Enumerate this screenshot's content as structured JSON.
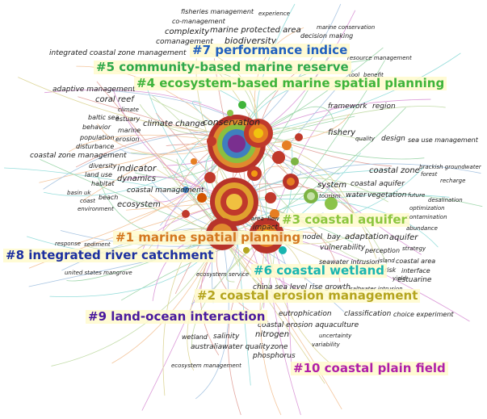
{
  "clusters": [
    {
      "id": "c7",
      "label": "#7 performance indice",
      "color": "#1f5fbf"
    },
    {
      "id": "c5",
      "label": "#5 community-based marine reserve",
      "color": "#2ea84a"
    },
    {
      "id": "c4",
      "label": "#4 ecosystem-based marine spatial planning",
      "color": "#3fb43a"
    },
    {
      "id": "c3",
      "label": "#3 coastal aquifer",
      "color": "#8cc63f"
    },
    {
      "id": "c1",
      "label": "#1 marine spatial planning",
      "color": "#d4771f"
    },
    {
      "id": "c8",
      "label": "#8 integrated river catchment",
      "color": "#1c2fa0"
    },
    {
      "id": "c6",
      "label": "#6 coastal wetland",
      "color": "#19b5b0"
    },
    {
      "id": "c2",
      "label": "#2 coastal erosion management",
      "color": "#b5a51f"
    },
    {
      "id": "c9",
      "label": "#9 land-ocean interaction",
      "color": "#4a1a9e"
    },
    {
      "id": "c10",
      "label": "#10 coastal plain field",
      "color": "#b01fa8"
    }
  ],
  "keywords": {
    "fisheries_management": "fisheries management",
    "experience": "experience",
    "co_management": "co-management",
    "marine_conservation": "marine conservation",
    "complexity": "complexity",
    "marine_protected_area": "marine protected area",
    "decision_making": "decision making",
    "comanagement": "comanagement",
    "biodiversity": "biodiversity",
    "integrated_czm": "integrated coastal zone management",
    "resource_management": "resource management",
    "tool": "tool",
    "benefit": "benefit",
    "adaptive_management": "adaptive management",
    "coral_reef": "coral reef",
    "framework": "framework",
    "region": "region",
    "climate": "climate",
    "baltic_sea": "baltic sea",
    "estuary": "estuary",
    "behavior": "behavior",
    "climate_change": "climate change",
    "conservation": "conservation",
    "marine": "marine",
    "population": "population",
    "erosion": "erosion",
    "fishery": "fishery",
    "disturbance": "disturbance",
    "quality": "quality",
    "design": "design",
    "sea_use_management": "sea use management",
    "czm": "coastal zone management",
    "diversity": "diversity",
    "indicator": "indicator",
    "coastal_zone": "coastal zone",
    "brackish_groundwater": "brackish groundwater",
    "forest": "forest",
    "land_use": "land use",
    "dynamics": "dynamics",
    "recharge": "recharge",
    "habitat": "habitat",
    "system": "system",
    "coastal_aquifer": "coastal aquifer",
    "coastal_management": "coastal management",
    "basin": "basin",
    "uk": "uk",
    "tourism": "tourism",
    "water": "water",
    "vegetation": "vegetation",
    "future": "future",
    "desalination": "desalination",
    "coast": "coast",
    "beach": "beach",
    "ecosystem": "ecosystem",
    "environment": "environment",
    "optimization": "optimization",
    "contamination": "contamination",
    "area": "area",
    "flow": "flow",
    "abundance": "abundance",
    "impact": "impact",
    "model": "model",
    "bay": "bay",
    "adaptation": "adaptation",
    "aquifer": "aquifer",
    "response": "response",
    "sediment": "sediment",
    "vulnerability": "vulnerability",
    "perception": "perception",
    "strategy": "strategy",
    "seawater_intrusion": "seawater intrusion",
    "island": "island",
    "coastal_area": "coastal area",
    "risk": "risk",
    "interface": "interface",
    "us_mangrove": "united states mangrove",
    "ecosystem_service": "ecosystem service",
    "yield": "yield",
    "estuarine": "estuarine",
    "china_sea_level": "china sea level rise growth",
    "saltwater_intrusion": "saltwater intrusion",
    "eutrophication": "eutrophication",
    "classification": "classification",
    "choice_experiment": "choice experiment",
    "coastal_erosion_aq": "coastal erosion aquaculture",
    "wetland": "wetland",
    "salinity": "salinity",
    "nitrogen": "nitrogen",
    "uncertainty": "uncertainty",
    "variability": "variability",
    "australia": "australia",
    "water_quality": "water quality",
    "zone": "zone",
    "phosphorus": "phosphorus",
    "ecosystem_management": "ecosystem management"
  },
  "colors": {
    "background": "#ffffff",
    "label_highlight": "#fff8c8",
    "node_red": "#c0392b",
    "node_orange": "#e67e22",
    "node_green": "#7cb342",
    "node_yellow": "#f1c40f"
  }
}
